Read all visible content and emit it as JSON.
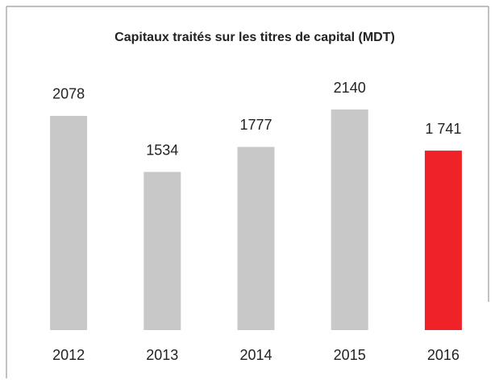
{
  "chart_data": {
    "type": "bar",
    "title": "Capitaux traités sur les titres de capital (MDT)",
    "categories": [
      "2012",
      "2013",
      "2014",
      "2015",
      "2016"
    ],
    "values": [
      2078,
      1534,
      1777,
      2140,
      1741
    ],
    "value_labels": [
      "2078",
      "1534",
      "1777",
      "2140",
      "1 741"
    ],
    "colors": [
      "#c8c8c8",
      "#c8c8c8",
      "#c8c8c8",
      "#c8c8c8",
      "#ee2227"
    ]
  }
}
